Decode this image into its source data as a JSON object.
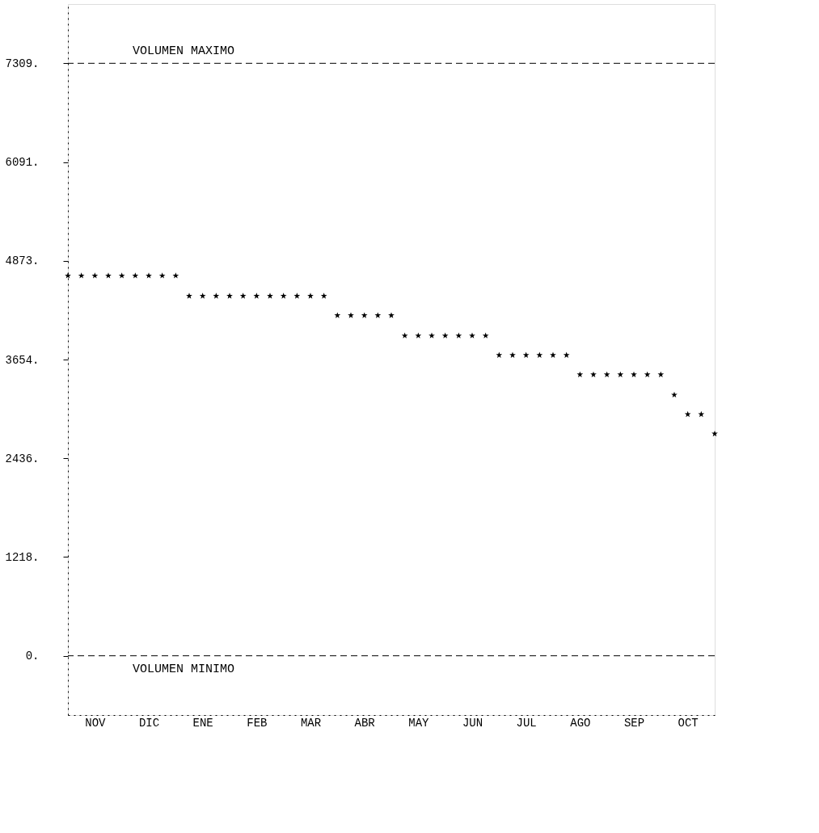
{
  "chart_data": {
    "type": "scatter",
    "marker": "star",
    "grid": false,
    "categories": [
      null,
      null,
      "NOV",
      null,
      null,
      null,
      "DIC",
      null,
      null,
      null,
      "ENE",
      null,
      null,
      null,
      "FEB",
      null,
      null,
      null,
      "MAR",
      null,
      null,
      null,
      "ABR",
      null,
      null,
      null,
      "MAY",
      null,
      null,
      null,
      "JUN",
      null,
      null,
      null,
      "JUL",
      null,
      null,
      null,
      "AGO",
      null,
      null,
      null,
      "SEP",
      null,
      null,
      null,
      "OCT",
      null,
      null
    ],
    "series": [
      {
        "color": "#000000",
        "values": [
          4690,
          4690,
          4690,
          4690,
          4690,
          4690,
          4690,
          4690,
          4690,
          4440,
          4440,
          4440,
          4440,
          4440,
          4440,
          4440,
          4440,
          4440,
          4440,
          4440,
          4200,
          4200,
          4200,
          4200,
          4200,
          3950,
          3950,
          3950,
          3950,
          3950,
          3950,
          3950,
          3710,
          3710,
          3710,
          3710,
          3710,
          3710,
          3470,
          3470,
          3470,
          3470,
          3470,
          3470,
          3470,
          3220,
          2980,
          2980,
          2740
        ]
      }
    ],
    "ylim": [
      -731,
      8040
    ],
    "yticks": [
      {
        "value": 0,
        "label": "0."
      },
      {
        "value": 1218,
        "label": "1218."
      },
      {
        "value": 2436,
        "label": "2436."
      },
      {
        "value": 3654,
        "label": "3654."
      },
      {
        "value": 4873,
        "label": "4873."
      },
      {
        "value": 6091,
        "label": "6091."
      },
      {
        "value": 7309,
        "label": "7309."
      }
    ],
    "ref_lines": [
      {
        "axis": "y",
        "value": 7309,
        "label": "VOLUMEN MAXIMO",
        "line_style": "dashed"
      },
      {
        "axis": "y",
        "value": 0,
        "label": "VOLUMEN MINIMO",
        "line_style": "dashed"
      }
    ]
  }
}
